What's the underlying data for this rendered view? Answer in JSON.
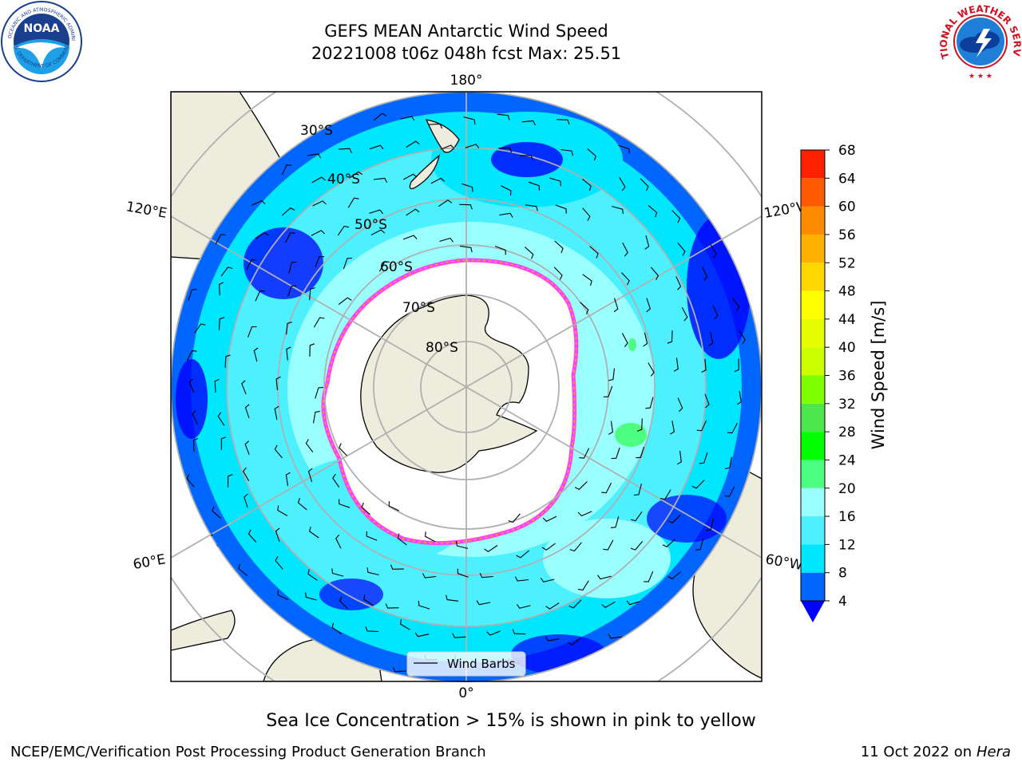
{
  "title": {
    "line1": "GEFS MEAN Antarctic Wind Speed",
    "line2": "20221008 t06z 048h fcst   Max: 25.51"
  },
  "map": {
    "projection": "south-polar-stereographic",
    "lon_labels": {
      "top": "180°",
      "bottom": "0°",
      "upper_left": "120°E",
      "lower_left": "60°E",
      "upper_right": "120°W",
      "lower_right": "60°W"
    },
    "lat_labels": [
      "30°S",
      "40°S",
      "50°S",
      "60°S",
      "70°S",
      "80°S"
    ],
    "legend_label": "Wind Barbs"
  },
  "colorbar": {
    "label": "Wind Speed [m/s]",
    "ticks": [
      "4",
      "8",
      "12",
      "16",
      "20",
      "24",
      "28",
      "32",
      "36",
      "40",
      "44",
      "48",
      "52",
      "56",
      "60",
      "64",
      "68"
    ],
    "colors": [
      "#0066ff",
      "#00e6ff",
      "#4df0ff",
      "#99ffff",
      "#4dff80",
      "#00ff00",
      "#4de64d",
      "#80ff00",
      "#ccff00",
      "#e6ff00",
      "#ffff00",
      "#ffd700",
      "#ffb000",
      "#ff8c00",
      "#ff5a00",
      "#ff2000"
    ],
    "under_color": "#0000ff"
  },
  "caption": "Sea Ice Concentration > 15% is shown in pink to yellow",
  "footer": {
    "left": "NCEP/EMC/Verification Post Processing Product Generation Branch",
    "right_prefix": "11 Oct 2022 on ",
    "right_host": "Hera"
  },
  "logos": {
    "noaa_text": "NOAA",
    "noaa_ring_top": "NATIONAL OCEANIC AND ATMOSPHERIC ADMINISTRATION",
    "noaa_ring_bottom": "U.S. DEPARTMENT OF COMMERCE",
    "nws_ring": "NATIONAL WEATHER SERVICE"
  }
}
